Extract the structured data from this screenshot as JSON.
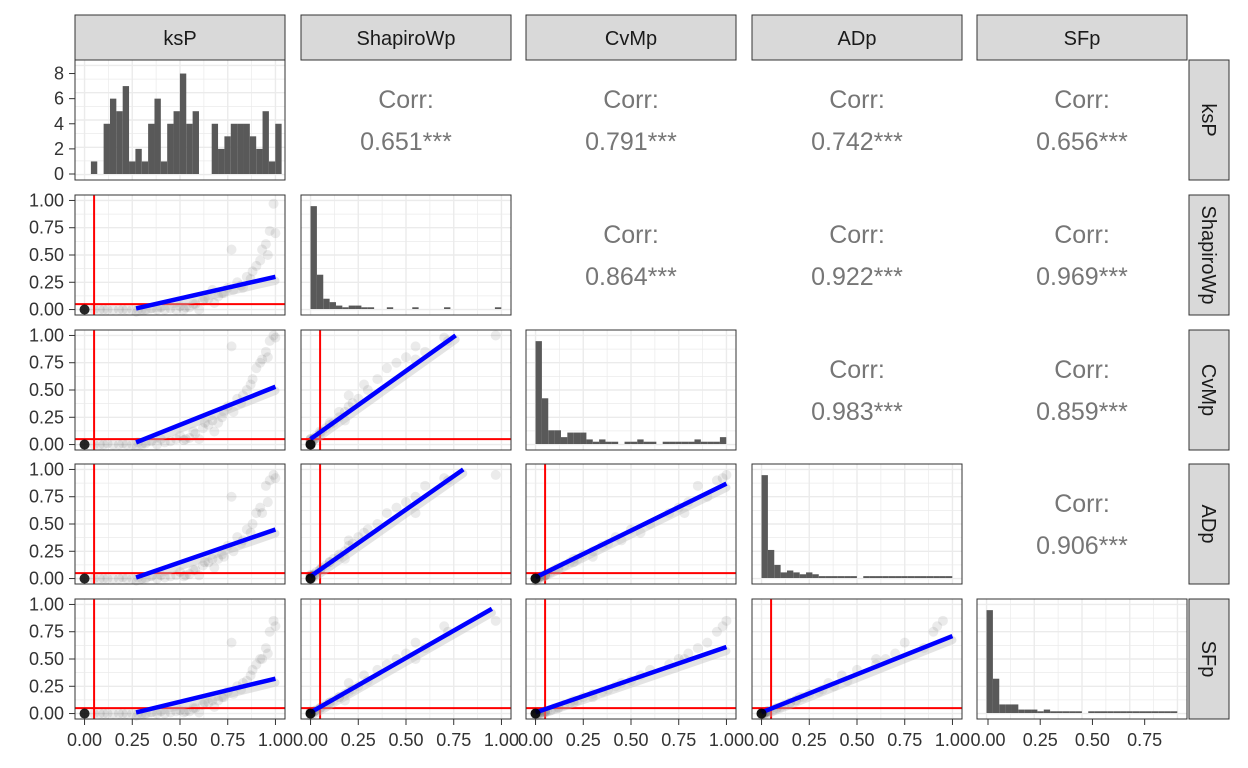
{
  "chart_data": {
    "type": "scatter-matrix",
    "variables": [
      "ksP",
      "ShapiroWp",
      "CvMp",
      "ADp",
      "SFp"
    ],
    "axis_ticks_x": [
      "0.00",
      "0.25",
      "0.50",
      "0.75",
      "1.00"
    ],
    "axis_ticks_x_last": [
      "0.00",
      "0.25",
      "0.50",
      "0.75"
    ],
    "axis_ticks_y": [
      "0.00",
      "0.25",
      "0.50",
      "0.75",
      "1.00"
    ],
    "hist_ticks_ksP": [
      "0",
      "2",
      "4",
      "6",
      "8"
    ],
    "corr_label": "Corr:",
    "correlations": [
      {
        "row": "ksP",
        "col": "ShapiroWp",
        "text": "0.651***"
      },
      {
        "row": "ksP",
        "col": "CvMp",
        "text": "0.791***"
      },
      {
        "row": "ksP",
        "col": "ADp",
        "text": "0.742***"
      },
      {
        "row": "ksP",
        "col": "SFp",
        "text": "0.656***"
      },
      {
        "row": "ShapiroWp",
        "col": "CvMp",
        "text": "0.864***"
      },
      {
        "row": "ShapiroWp",
        "col": "ADp",
        "text": "0.922***"
      },
      {
        "row": "ShapiroWp",
        "col": "SFp",
        "text": "0.969***"
      },
      {
        "row": "CvMp",
        "col": "ADp",
        "text": "0.983***"
      },
      {
        "row": "CvMp",
        "col": "SFp",
        "text": "0.859***"
      },
      {
        "row": "ADp",
        "col": "SFp",
        "text": "0.906***"
      }
    ],
    "histograms": {
      "ksP": {
        "bin_start": 0.0,
        "bin_width": 0.0333,
        "counts": [
          0,
          1,
          0,
          4,
          6,
          5,
          7,
          1,
          2,
          1,
          4,
          6,
          1,
          4,
          5,
          8,
          4,
          5,
          0,
          0,
          4,
          2,
          3,
          4,
          4,
          4,
          3,
          2,
          5,
          1,
          4
        ]
      },
      "ShapiroWp": {
        "bin_start": 0.0,
        "bin_width": 0.0333,
        "counts": [
          60,
          20,
          6,
          4,
          2,
          1,
          2,
          2,
          1,
          1,
          0,
          0,
          1,
          0,
          0,
          0,
          1,
          0,
          0,
          0,
          0,
          1,
          0,
          0,
          0,
          0,
          0,
          0,
          0,
          1
        ]
      },
      "CvMp": {
        "bin_start": 0.0,
        "bin_width": 0.0333,
        "counts": [
          45,
          20,
          6,
          6,
          3,
          5,
          5,
          5,
          2,
          1,
          2,
          1,
          1,
          0,
          1,
          1,
          2,
          1,
          1,
          0,
          1,
          1,
          1,
          1,
          1,
          2,
          1,
          1,
          1,
          3
        ]
      },
      "ADp": {
        "bin_start": 0.0,
        "bin_width": 0.0333,
        "counts": [
          55,
          15,
          7,
          3,
          4,
          3,
          2,
          3,
          2,
          1,
          1,
          1,
          1,
          1,
          1,
          0,
          1,
          1,
          1,
          1,
          1,
          1,
          1,
          1,
          1,
          1,
          1,
          1,
          1,
          1
        ]
      },
      "SFp": {
        "bin_start": 0.0,
        "bin_width": 0.0333,
        "counts": [
          60,
          20,
          5,
          5,
          5,
          2,
          2,
          2,
          1,
          2,
          1,
          1,
          1,
          1,
          1,
          0,
          1,
          1,
          1,
          1,
          1,
          1,
          1,
          1,
          1,
          1,
          1,
          1,
          1,
          1
        ]
      }
    },
    "threshold": 0.05,
    "regression_lines": [
      {
        "x_var": "ksP",
        "y_var": "ShapiroWp",
        "x": [
          0.27,
          1.0
        ],
        "y": [
          0.01,
          0.3
        ]
      },
      {
        "x_var": "ksP",
        "y_var": "CvMp",
        "x": [
          0.27,
          1.0
        ],
        "y": [
          0.02,
          0.53
        ]
      },
      {
        "x_var": "ksP",
        "y_var": "ADp",
        "x": [
          0.27,
          1.0
        ],
        "y": [
          0.01,
          0.45
        ]
      },
      {
        "x_var": "ksP",
        "y_var": "SFp",
        "x": [
          0.27,
          1.0
        ],
        "y": [
          0.01,
          0.32
        ]
      },
      {
        "x_var": "ShapiroWp",
        "y_var": "CvMp",
        "x": [
          0.0,
          0.76
        ],
        "y": [
          0.05,
          1.0
        ]
      },
      {
        "x_var": "ShapiroWp",
        "y_var": "ADp",
        "x": [
          0.0,
          0.8
        ],
        "y": [
          0.02,
          1.0
        ]
      },
      {
        "x_var": "ShapiroWp",
        "y_var": "SFp",
        "x": [
          0.0,
          0.95
        ],
        "y": [
          0.01,
          0.96
        ]
      },
      {
        "x_var": "CvMp",
        "y_var": "ADp",
        "x": [
          0.0,
          1.0
        ],
        "y": [
          0.01,
          0.87
        ]
      },
      {
        "x_var": "CvMp",
        "y_var": "SFp",
        "x": [
          0.0,
          1.0
        ],
        "y": [
          0.01,
          0.61
        ]
      },
      {
        "x_var": "ADp",
        "y_var": "SFp",
        "x": [
          0.0,
          1.0
        ],
        "y": [
          0.01,
          0.71
        ]
      }
    ],
    "scatter_points": {
      "ksP": [
        0.05,
        0.08,
        0.1,
        0.12,
        0.15,
        0.18,
        0.2,
        0.22,
        0.25,
        0.28,
        0.3,
        0.32,
        0.35,
        0.38,
        0.4,
        0.42,
        0.45,
        0.48,
        0.5,
        0.52,
        0.55,
        0.58,
        0.6,
        0.62,
        0.65,
        0.68,
        0.7,
        0.72,
        0.75,
        0.78,
        0.8,
        0.82,
        0.85,
        0.88,
        0.9,
        0.92,
        0.95,
        0.97,
        0.99,
        1.0,
        0.96,
        0.93,
        0.87,
        0.83,
        0.77,
        0.73,
        0.67,
        0.63,
        0.57,
        0.53
      ],
      "ShapiroWp": [
        0.0,
        0.0,
        0.0,
        0.0,
        0.0,
        0.0,
        0.0,
        0.0,
        0.0,
        0.0,
        0.0,
        0.0,
        0.01,
        0.0,
        0.02,
        0.0,
        0.01,
        0.0,
        0.03,
        0.0,
        0.02,
        0.05,
        0.0,
        0.08,
        0.1,
        0.06,
        0.12,
        0.15,
        0.2,
        0.18,
        0.25,
        0.22,
        0.3,
        0.35,
        0.4,
        0.45,
        0.6,
        0.72,
        0.97,
        0.7,
        0.5,
        0.55,
        0.28,
        0.2,
        0.55,
        0.15,
        0.18,
        0.1,
        0.05,
        0.02
      ],
      "CvMp": [
        0.0,
        0.0,
        0.0,
        0.01,
        0.0,
        0.0,
        0.01,
        0.0,
        0.0,
        0.02,
        0.0,
        0.01,
        0.03,
        0.0,
        0.05,
        0.02,
        0.03,
        0.05,
        0.08,
        0.04,
        0.06,
        0.1,
        0.05,
        0.15,
        0.18,
        0.12,
        0.2,
        0.25,
        0.35,
        0.3,
        0.42,
        0.38,
        0.5,
        0.6,
        0.7,
        0.75,
        0.85,
        0.95,
        1.0,
        0.98,
        0.8,
        0.78,
        0.55,
        0.45,
        0.9,
        0.3,
        0.22,
        0.2,
        0.12,
        0.05
      ],
      "ADp": [
        0.0,
        0.0,
        0.0,
        0.0,
        0.0,
        0.0,
        0.01,
        0.0,
        0.0,
        0.01,
        0.0,
        0.0,
        0.02,
        0.0,
        0.03,
        0.01,
        0.02,
        0.03,
        0.06,
        0.02,
        0.04,
        0.08,
        0.03,
        0.12,
        0.15,
        0.1,
        0.18,
        0.22,
        0.3,
        0.25,
        0.38,
        0.32,
        0.45,
        0.5,
        0.6,
        0.65,
        0.85,
        0.9,
        0.95,
        0.92,
        0.7,
        0.6,
        0.42,
        0.35,
        0.75,
        0.2,
        0.18,
        0.15,
        0.08,
        0.03
      ],
      "SFp": [
        0.0,
        0.0,
        0.0,
        0.0,
        0.0,
        0.0,
        0.0,
        0.0,
        0.0,
        0.0,
        0.0,
        0.0,
        0.01,
        0.0,
        0.02,
        0.0,
        0.01,
        0.02,
        0.03,
        0.01,
        0.02,
        0.05,
        0.01,
        0.08,
        0.1,
        0.06,
        0.12,
        0.15,
        0.2,
        0.18,
        0.25,
        0.22,
        0.3,
        0.4,
        0.45,
        0.5,
        0.6,
        0.75,
        0.85,
        0.8,
        0.55,
        0.5,
        0.35,
        0.28,
        0.65,
        0.15,
        0.12,
        0.1,
        0.05,
        0.02
      ]
    }
  }
}
